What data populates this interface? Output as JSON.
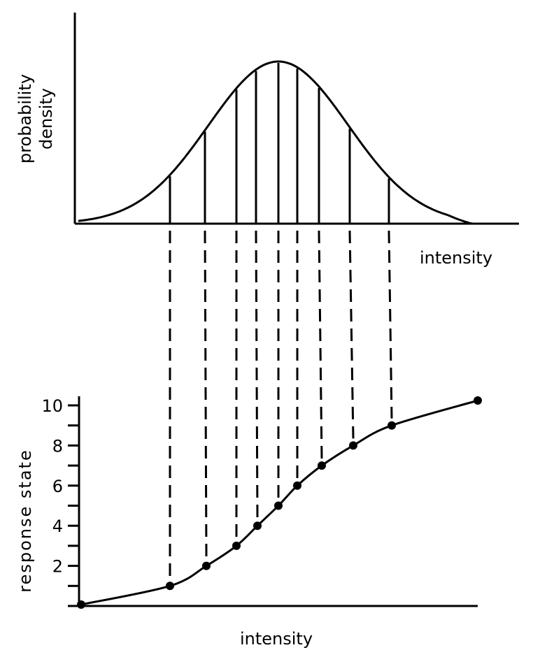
{
  "chart_data": [
    {
      "type": "area",
      "description_role": "distribution",
      "ylabel_line1": "probability",
      "ylabel_line2": "density",
      "xlabel": "intensity",
      "grid": false,
      "curve_shape": "bell"
    },
    {
      "type": "line",
      "xlabel": "intensity",
      "ylabel": "response state",
      "ylim": [
        0,
        10
      ],
      "yticks": [
        0,
        1,
        2,
        3,
        4,
        5,
        6,
        7,
        8,
        9,
        10
      ],
      "ytick_labels": [
        "2",
        "4",
        "6",
        "8",
        "10"
      ],
      "ytick_label_values": [
        2,
        4,
        6,
        8,
        10
      ],
      "points_y": [
        0,
        1,
        2,
        3,
        4,
        5,
        6,
        7,
        8,
        9,
        10
      ],
      "grid": false
    }
  ],
  "colors": {
    "ink": "#000000",
    "background": "#ffffff"
  }
}
